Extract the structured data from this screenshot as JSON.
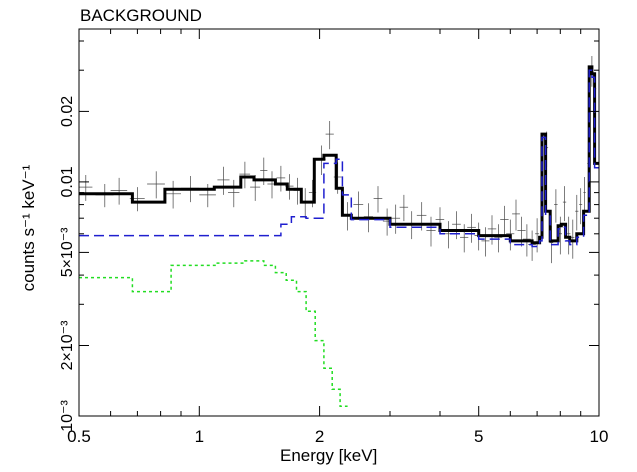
{
  "chart_data": {
    "type": "line",
    "title": "BACKGROUND",
    "xlabel": "Energy [keV]",
    "ylabel": "counts s⁻¹ keV⁻¹",
    "xscale": "log",
    "yscale": "log",
    "xlim": [
      0.5,
      10
    ],
    "ylim": [
      0.001,
      0.045
    ],
    "x_ticks": [
      {
        "value": 0.5,
        "label": "0.5"
      },
      {
        "value": 1,
        "label": "1"
      },
      {
        "value": 2,
        "label": "2"
      },
      {
        "value": 5,
        "label": "5"
      },
      {
        "value": 10,
        "label": "10"
      }
    ],
    "y_ticks": [
      {
        "value": 0.001,
        "label": "10⁻³"
      },
      {
        "value": 0.002,
        "label": "2×10⁻³"
      },
      {
        "value": 0.005,
        "label": "5×10⁻³"
      },
      {
        "value": 0.01,
        "label": "0.01"
      },
      {
        "value": 0.02,
        "label": "0.02"
      }
    ],
    "data_points": {
      "style": "crosses with error bars, thin black",
      "x": [
        0.52,
        0.58,
        0.63,
        0.7,
        0.78,
        0.86,
        0.95,
        1.05,
        1.15,
        1.22,
        1.3,
        1.38,
        1.45,
        1.52,
        1.6,
        1.68,
        1.76,
        1.84,
        1.92,
        2.02,
        2.12,
        2.22,
        2.35,
        2.5,
        2.65,
        2.8,
        2.95,
        3.1,
        3.25,
        3.4,
        3.6,
        3.8,
        4.0,
        4.2,
        4.4,
        4.6,
        4.8,
        5.0,
        5.2,
        5.4,
        5.6,
        5.8,
        6.0,
        6.2,
        6.4,
        6.6,
        6.8,
        7.0,
        7.2,
        7.4,
        7.6,
        7.8,
        8.0,
        8.2,
        8.4,
        8.6,
        8.8,
        9.0,
        9.2,
        9.4,
        9.6,
        9.8
      ],
      "y": [
        0.0095,
        0.0088,
        0.0092,
        0.0085,
        0.0098,
        0.0089,
        0.0094,
        0.0088,
        0.0102,
        0.009,
        0.0108,
        0.0095,
        0.0112,
        0.0098,
        0.0104,
        0.0096,
        0.0092,
        0.0082,
        0.009,
        0.0125,
        0.016,
        0.0105,
        0.0072,
        0.008,
        0.0071,
        0.0085,
        0.0068,
        0.007,
        0.0078,
        0.0066,
        0.0072,
        0.0062,
        0.0069,
        0.006,
        0.0066,
        0.0058,
        0.0064,
        0.0059,
        0.0056,
        0.0063,
        0.0058,
        0.0069,
        0.006,
        0.0073,
        0.0062,
        0.0057,
        0.0054,
        0.006,
        0.013,
        0.014,
        0.0055,
        0.008,
        0.006,
        0.0082,
        0.006,
        0.0058,
        0.0075,
        0.008,
        0.009,
        0.012,
        0.03,
        0.025
      ],
      "yerr": [
        0.0012,
        0.001,
        0.0012,
        0.001,
        0.0013,
        0.0012,
        0.0012,
        0.001,
        0.0014,
        0.0012,
        0.0014,
        0.0012,
        0.0015,
        0.0013,
        0.0013,
        0.0012,
        0.0012,
        0.0012,
        0.0012,
        0.0018,
        0.0022,
        0.0016,
        0.001,
        0.0011,
        0.001,
        0.0011,
        0.0009,
        0.001,
        0.001,
        0.0009,
        0.001,
        0.0009,
        0.0009,
        0.0008,
        0.0009,
        0.0008,
        0.0009,
        0.0008,
        0.0008,
        0.0009,
        0.0008,
        0.001,
        0.0009,
        0.0011,
        0.0009,
        0.0009,
        0.0008,
        0.001,
        0.002,
        0.0024,
        0.001,
        0.0013,
        0.0011,
        0.0014,
        0.0011,
        0.0011,
        0.0013,
        0.0014,
        0.0015,
        0.002,
        0.0045,
        0.004
      ],
      "xerr": [
        0.02,
        0.03,
        0.03,
        0.03,
        0.04,
        0.04,
        0.05,
        0.05,
        0.04,
        0.04,
        0.04,
        0.04,
        0.03,
        0.04,
        0.04,
        0.04,
        0.04,
        0.04,
        0.04,
        0.05,
        0.05,
        0.05,
        0.06,
        0.07,
        0.07,
        0.07,
        0.07,
        0.08,
        0.08,
        0.09,
        0.1,
        0.1,
        0.1,
        0.1,
        0.11,
        0.11,
        0.12,
        0.12,
        0.12,
        0.13,
        0.13,
        0.14,
        0.14,
        0.14,
        0.15,
        0.15,
        0.15,
        0.08,
        0.06,
        0.06,
        0.08,
        0.08,
        0.08,
        0.08,
        0.08,
        0.08,
        0.08,
        0.08,
        0.06,
        0.05,
        0.04,
        0.04
      ]
    },
    "series": [
      {
        "style": "thick solid black step",
        "color": "#000000",
        "edges": [
          0.5,
          0.68,
          0.82,
          1.09,
          1.27,
          1.37,
          1.55,
          1.66,
          1.8,
          1.94,
          2.05,
          2.2,
          2.28,
          2.4,
          3.0,
          4.0,
          5.0,
          6.0,
          6.8,
          7.1,
          7.2,
          7.35,
          7.55,
          7.9,
          8.05,
          8.25,
          8.45,
          8.8,
          9.15,
          9.45,
          9.6,
          9.75,
          10.0
        ],
        "values": [
          0.0089,
          0.0082,
          0.0093,
          0.0095,
          0.0105,
          0.0102,
          0.0098,
          0.0093,
          0.0082,
          0.0125,
          0.013,
          0.0094,
          0.0072,
          0.007,
          0.0066,
          0.0062,
          0.0059,
          0.0056,
          0.0055,
          0.0058,
          0.016,
          0.0075,
          0.0056,
          0.0065,
          0.0066,
          0.0058,
          0.0056,
          0.006,
          0.0075,
          0.031,
          0.029,
          0.012
        ]
      },
      {
        "style": "dashed blue step",
        "color": "#1f1fcf",
        "edges": [
          0.5,
          1.6,
          1.7,
          1.85,
          2.05,
          2.2,
          2.28,
          2.4,
          3.0,
          4.0,
          5.0,
          6.0,
          6.8,
          7.1,
          7.2,
          7.35,
          7.55,
          7.9,
          8.05,
          8.25,
          8.45,
          8.8,
          9.15,
          9.45,
          9.6,
          9.75,
          10.0
        ],
        "values": [
          0.0059,
          0.0066,
          0.0071,
          0.007,
          0.012,
          0.0125,
          0.0088,
          0.0069,
          0.0064,
          0.006,
          0.0057,
          0.0054,
          0.0053,
          0.0056,
          0.0155,
          0.0072,
          0.0054,
          0.0063,
          0.0064,
          0.0056,
          0.0054,
          0.0058,
          0.0072,
          0.03,
          0.028,
          0.0115
        ]
      },
      {
        "style": "dotted green step",
        "color": "#22dd22",
        "edges": [
          0.5,
          0.68,
          0.8,
          0.85,
          1.1,
          1.3,
          1.45,
          1.55,
          1.65,
          1.75,
          1.85,
          1.95,
          2.05,
          2.15,
          2.25,
          2.35
        ],
        "values": [
          0.0039,
          0.0034,
          0.0034,
          0.0044,
          0.0045,
          0.0046,
          0.0044,
          0.0041,
          0.0038,
          0.0034,
          0.0028,
          0.0021,
          0.0016,
          0.0013,
          0.0011
        ]
      }
    ]
  }
}
